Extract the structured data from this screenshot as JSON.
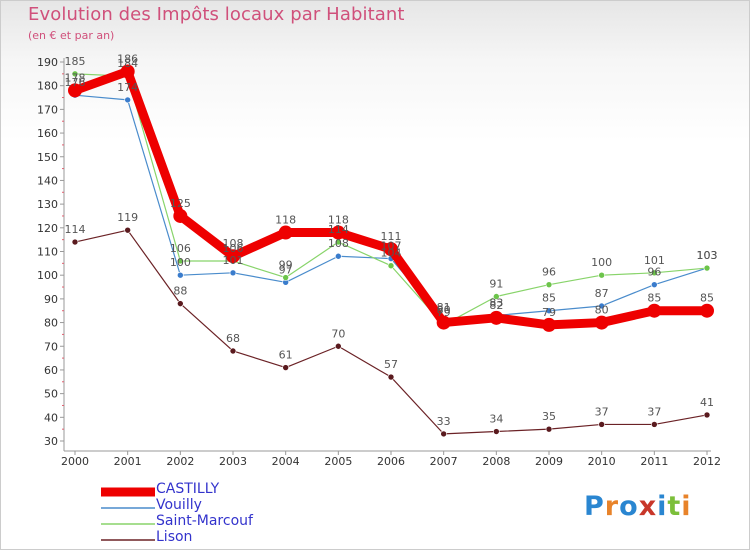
{
  "header": {
    "title": "Evolution des Impôts locaux par Habitant",
    "subtitle": "(en € et par an)"
  },
  "logo": {
    "text": "Proxiti",
    "colors": [
      "#2a86d1",
      "#e8832a",
      "#2a86d1",
      "#c8372a",
      "#2a86d1",
      "#7cbf3a",
      "#e8832a"
    ]
  },
  "chart_data": {
    "type": "line",
    "title": "Evolution des Impôts locaux par Habitant",
    "subtitle": "(en € et par an)",
    "xlabel": "",
    "ylabel": "",
    "ylim": [
      30,
      190
    ],
    "yticks": [
      30,
      40,
      50,
      60,
      70,
      80,
      90,
      100,
      110,
      120,
      130,
      140,
      150,
      160,
      170,
      180,
      190
    ],
    "grid": false,
    "legend_position": "bottom-left",
    "categories": [
      "2000",
      "2001",
      "2002",
      "2003",
      "2004",
      "2005",
      "2006",
      "2007",
      "2008",
      "2009",
      "2010",
      "2011",
      "2012"
    ],
    "series": [
      {
        "name": "Lison",
        "color": "#6b2226",
        "values": [
          114,
          119,
          88,
          68,
          61,
          70,
          57,
          33,
          34,
          35,
          37,
          37,
          41
        ],
        "labels": [
          "114",
          "119",
          "88",
          "68",
          "61",
          "70",
          "57",
          "33",
          "34",
          "35",
          "37",
          "37",
          "41"
        ]
      },
      {
        "name": "Vouilly",
        "color": "#4a8ccc",
        "values": [
          176,
          174,
          100,
          101,
          97,
          108,
          107,
          81,
          83,
          85,
          87,
          96,
          103
        ],
        "labels": [
          "176",
          "174",
          "100",
          "101",
          "97",
          "108",
          "107",
          "81",
          "83",
          "85",
          "87",
          "96",
          "103"
        ]
      },
      {
        "name": "Saint-Marcouf",
        "color": "#88d46a",
        "values": [
          185,
          184,
          106,
          106,
          99,
          114,
          104,
          79,
          91,
          96,
          100,
          101,
          103
        ],
        "labels": [
          "185",
          "184",
          "106",
          "106",
          "99",
          "114",
          "104",
          "79",
          "91",
          "96",
          "100",
          "101",
          "103"
        ]
      },
      {
        "name": "CASTILLY",
        "color": "#ee0000",
        "values": [
          178,
          186,
          125,
          108,
          118,
          118,
          111,
          80,
          82,
          79,
          80,
          85,
          85
        ],
        "labels": [
          "178",
          "186",
          "125",
          "108",
          "118",
          "118",
          "111",
          "80",
          "82",
          "79",
          "80",
          "85",
          "85"
        ]
      }
    ]
  },
  "legend": [
    {
      "name": "CASTILLY",
      "color": "#ee0000"
    },
    {
      "name": "Vouilly",
      "color": "#4a8ccc"
    },
    {
      "name": "Saint-Marcouf",
      "color": "#88d46a"
    },
    {
      "name": "Lison",
      "color": "#6b2226"
    }
  ]
}
